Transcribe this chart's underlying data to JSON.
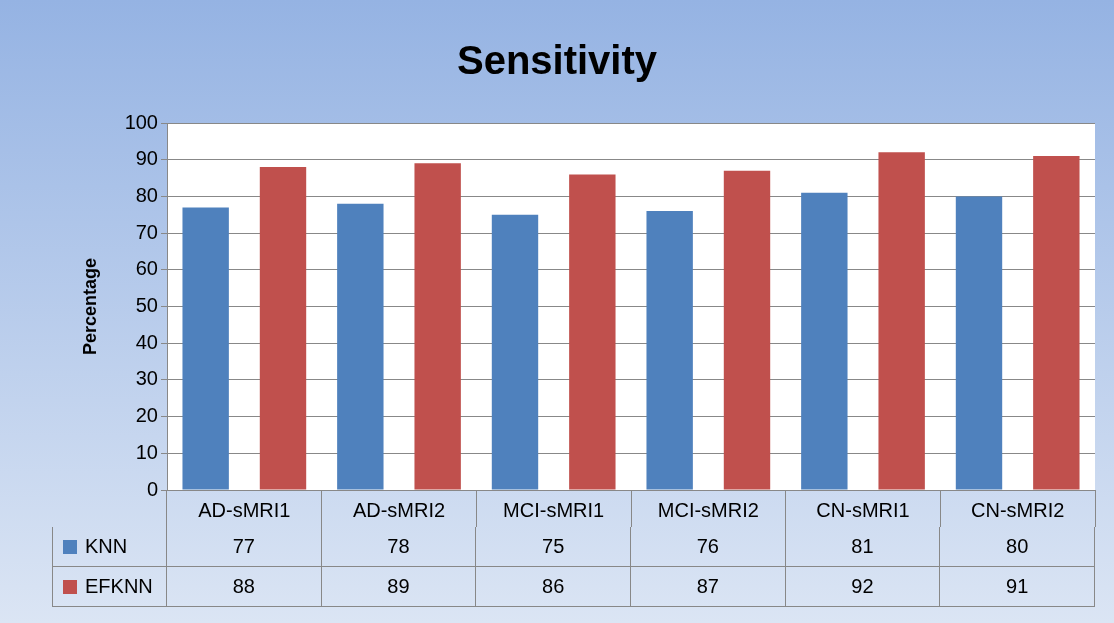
{
  "chart_data": {
    "type": "bar",
    "title": "Sensitivity",
    "ylabel": "Percentage",
    "categories": [
      "AD-sMRI1",
      "AD-sMRI2",
      "MCI-sMRI1",
      "MCI-sMRI2",
      "CN-sMRI1",
      "CN-sMRI2"
    ],
    "series": [
      {
        "name": "KNN",
        "color": "#4f81bd",
        "values": [
          77,
          78,
          75,
          76,
          81,
          80
        ]
      },
      {
        "name": "EFKNN",
        "color": "#c0504d",
        "values": [
          88,
          89,
          86,
          87,
          92,
          91
        ]
      }
    ],
    "ylim": [
      0,
      100
    ],
    "yticks": [
      0,
      10,
      20,
      30,
      40,
      50,
      60,
      70,
      80,
      90,
      100
    ],
    "grid": "y",
    "legend": "bottom",
    "data_labels": true
  }
}
